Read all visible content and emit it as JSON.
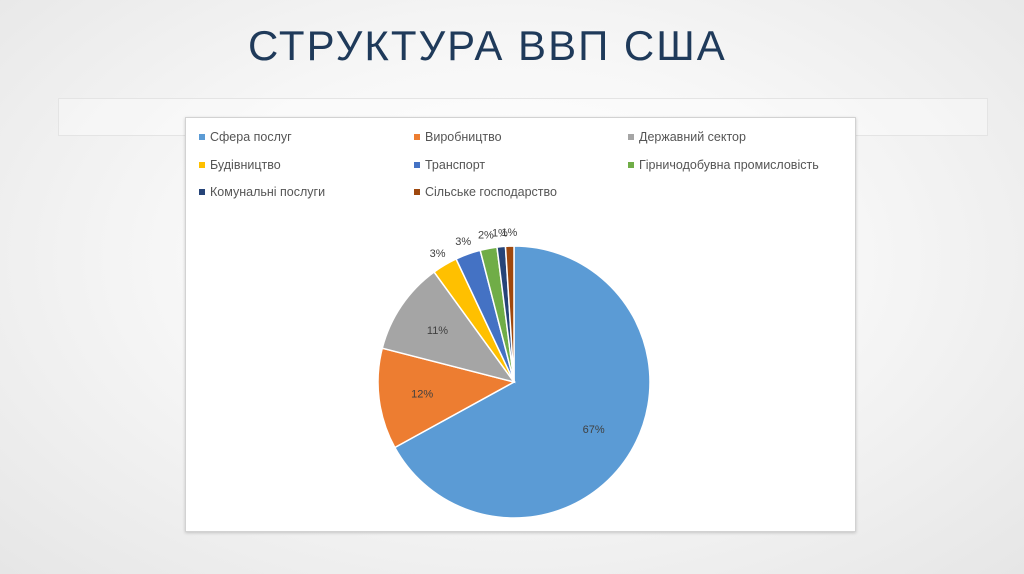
{
  "slide": {
    "title": "СТРУКТУРА ВВП США"
  },
  "chart_data": {
    "type": "pie",
    "title": "",
    "categories": [
      "Сфера послуг",
      "Виробництво",
      "Державний сектор",
      "Будівництво",
      "Транспорт",
      "Гірничодобувна промисловість",
      "Комунальні послуги",
      "Сільське господарство"
    ],
    "values": [
      67,
      12,
      11,
      3,
      3,
      2,
      1,
      1
    ],
    "value_labels": [
      "67%",
      "12%",
      "11%",
      "3%",
      "3%",
      "2%",
      "1%",
      "1%"
    ],
    "colors": [
      "#5B9BD5",
      "#ED7D31",
      "#A5A5A5",
      "#FFC000",
      "#4472C4",
      "#70AD47",
      "#264478",
      "#9E480E"
    ],
    "legend_position": "top",
    "grid": false
  }
}
